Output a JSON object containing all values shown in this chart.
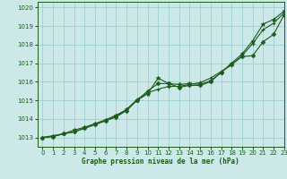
{
  "title": "Graphe pression niveau de la mer (hPa)",
  "bg_color": "#cce8e8",
  "grid_color": "#9ecece",
  "line_color": "#1a5c1a",
  "xlim": [
    -0.5,
    23
  ],
  "ylim": [
    1012.5,
    1020.3
  ],
  "yticks": [
    1013,
    1014,
    1015,
    1016,
    1017,
    1018,
    1019,
    1020
  ],
  "xticks": [
    0,
    1,
    2,
    3,
    4,
    5,
    6,
    7,
    8,
    9,
    10,
    11,
    12,
    13,
    14,
    15,
    16,
    17,
    18,
    19,
    20,
    21,
    22,
    23
  ],
  "line1_star": {
    "x": [
      0,
      1,
      2,
      3,
      4,
      5,
      6,
      7,
      8,
      9,
      10,
      11,
      12,
      13,
      14,
      15,
      16,
      17,
      18,
      19,
      20,
      21,
      22,
      23
    ],
    "y": [
      1013.0,
      1013.1,
      1013.2,
      1013.4,
      1013.55,
      1013.75,
      1013.95,
      1014.2,
      1014.5,
      1015.0,
      1015.35,
      1016.2,
      1015.9,
      1015.85,
      1015.9,
      1015.85,
      1016.05,
      1016.5,
      1017.0,
      1017.5,
      1018.2,
      1019.1,
      1019.35,
      1019.8
    ]
  },
  "line2_cross": {
    "x": [
      0,
      1,
      2,
      3,
      4,
      5,
      6,
      7,
      8,
      9,
      10,
      11,
      12,
      13,
      14,
      15,
      16,
      17,
      18,
      19,
      20,
      21,
      22,
      23
    ],
    "y": [
      1013.0,
      1013.05,
      1013.2,
      1013.3,
      1013.5,
      1013.7,
      1013.9,
      1014.15,
      1014.5,
      1015.05,
      1015.4,
      1015.6,
      1015.75,
      1015.75,
      1015.85,
      1015.95,
      1016.2,
      1016.55,
      1016.9,
      1017.4,
      1018.05,
      1018.8,
      1019.15,
      1019.7
    ]
  },
  "line3_diamond": {
    "x": [
      0,
      1,
      2,
      3,
      4,
      5,
      6,
      7,
      8,
      9,
      10,
      11,
      12,
      13,
      14,
      15,
      16,
      17,
      18,
      19,
      20,
      21,
      22,
      23
    ],
    "y": [
      1013.0,
      1013.05,
      1013.2,
      1013.3,
      1013.5,
      1013.7,
      1013.9,
      1014.1,
      1014.45,
      1015.0,
      1015.5,
      1015.9,
      1015.9,
      1015.7,
      1015.8,
      1015.8,
      1016.0,
      1016.5,
      1016.95,
      1017.35,
      1017.4,
      1018.15,
      1018.55,
      1019.6
    ]
  }
}
